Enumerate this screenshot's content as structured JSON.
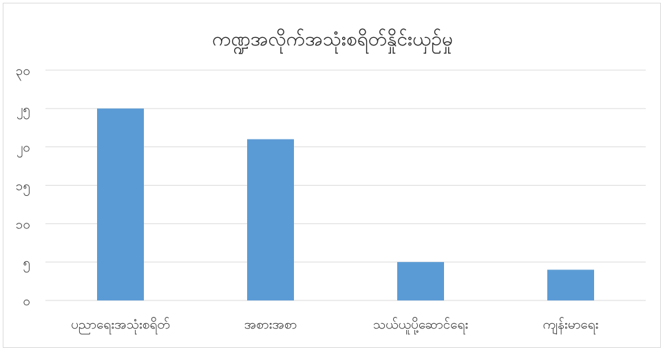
{
  "chart_data": {
    "type": "bar",
    "title": "ကဏ္ဍအလိုက်အသုံးစရိတ်နှိုင်းယှဉ်မှု",
    "categories": [
      "ပညာရေးအသုံးစရိတ်",
      "အစားအစာ",
      "သယ်ယူပို့ဆောင်ရေး",
      "ကျန်းမာရေး"
    ],
    "values": [
      25,
      21,
      5,
      4
    ],
    "ylim": [
      0,
      30
    ],
    "yticks": [
      0,
      5,
      10,
      15,
      20,
      25,
      30
    ],
    "ytick_labels": [
      "၀",
      "၅",
      "၁၀",
      "၁၅",
      "၂၀",
      "၂၅",
      "၃၀"
    ],
    "grid": true,
    "bar_color": "#5b9bd5"
  }
}
